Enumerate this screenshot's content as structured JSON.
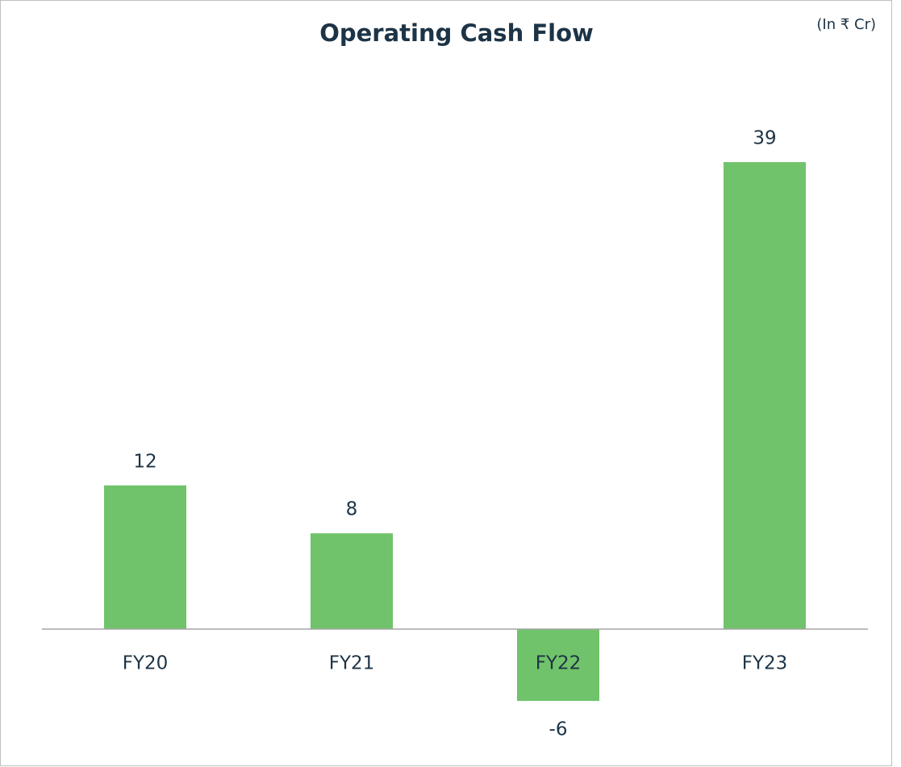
{
  "chart_data": {
    "type": "bar",
    "title": "Operating Cash Flow",
    "subtitle": "(In ₹ Cr)",
    "categories": [
      "FY20",
      "FY21",
      "FY22",
      "FY23"
    ],
    "values": [
      12,
      8,
      -6,
      39
    ],
    "color": "#70c36a"
  }
}
